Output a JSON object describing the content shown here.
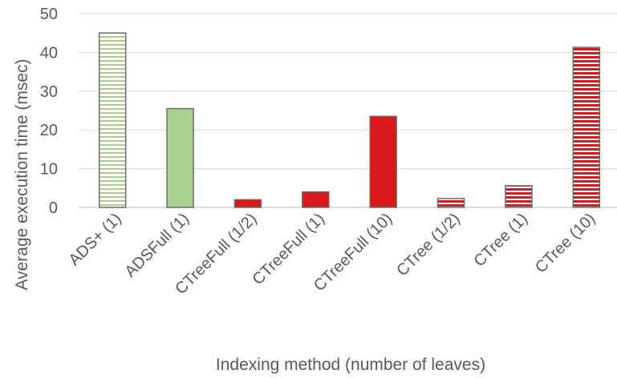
{
  "chart_data": {
    "type": "bar",
    "title": "",
    "xlabel": "Indexing method (number of leaves)",
    "ylabel": "Average execution time (msec)",
    "ylim": [
      0,
      50
    ],
    "yticks": [
      0,
      10,
      20,
      30,
      40,
      50
    ],
    "grid": true,
    "legend": "none",
    "categories": [
      "ADS+ (1)",
      "ADSFull (1)",
      "CTreeFull (1/2)",
      "CTreeFull (1)",
      "CTreeFull (10)",
      "CTree (1/2)",
      "CTree (1)",
      "CTree (10)"
    ],
    "values": [
      45,
      25.5,
      2,
      4,
      23.5,
      2.3,
      5.6,
      41.3
    ],
    "bar_styles": [
      "green-striped",
      "green-solid",
      "red-solid",
      "red-solid",
      "red-solid",
      "red-striped",
      "red-striped",
      "red-striped"
    ],
    "colors": {
      "green_fill": "#a9d18e",
      "green_stroke": "#6b6b6b",
      "green_stripe": "#a9d18e",
      "red_fill": "#d9191c",
      "red_stroke": "#6b6b6b",
      "grid": "#d9d9d9",
      "axis": "#bfbfbf",
      "text": "#595959"
    }
  }
}
